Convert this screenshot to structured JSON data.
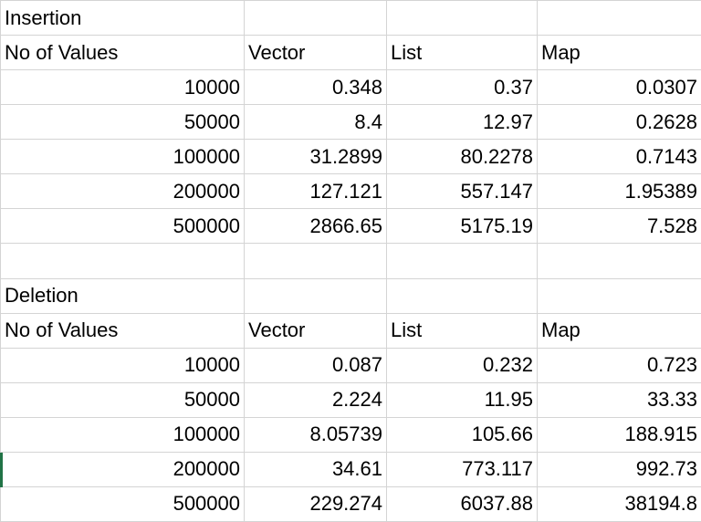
{
  "insertion": {
    "title": "Insertion",
    "headers": [
      "No of Values",
      "Vector",
      "List",
      "Map"
    ],
    "rows": [
      [
        "10000",
        "0.348",
        "0.37",
        "0.0307"
      ],
      [
        "50000",
        "8.4",
        "12.97",
        "0.2628"
      ],
      [
        "100000",
        "31.2899",
        "80.2278",
        "0.7143"
      ],
      [
        "200000",
        "127.121",
        "557.147",
        "1.95389"
      ],
      [
        "500000",
        "2866.65",
        "5175.19",
        "7.528"
      ]
    ]
  },
  "deletion": {
    "title": "Deletion",
    "headers": [
      "No of Values",
      "Vector",
      "List",
      "Map"
    ],
    "rows": [
      [
        "10000",
        "0.087",
        "0.232",
        "0.723"
      ],
      [
        "50000",
        "2.224",
        "11.95",
        "33.33"
      ],
      [
        "100000",
        "8.05739",
        "105.66",
        "188.915"
      ],
      [
        "200000",
        "34.61",
        "773.117",
        "992.73"
      ],
      [
        "500000",
        "229.274",
        "6037.88",
        "38194.8"
      ]
    ]
  },
  "colors": {
    "gridline": "#d4d4d4",
    "selection": "#217346"
  }
}
